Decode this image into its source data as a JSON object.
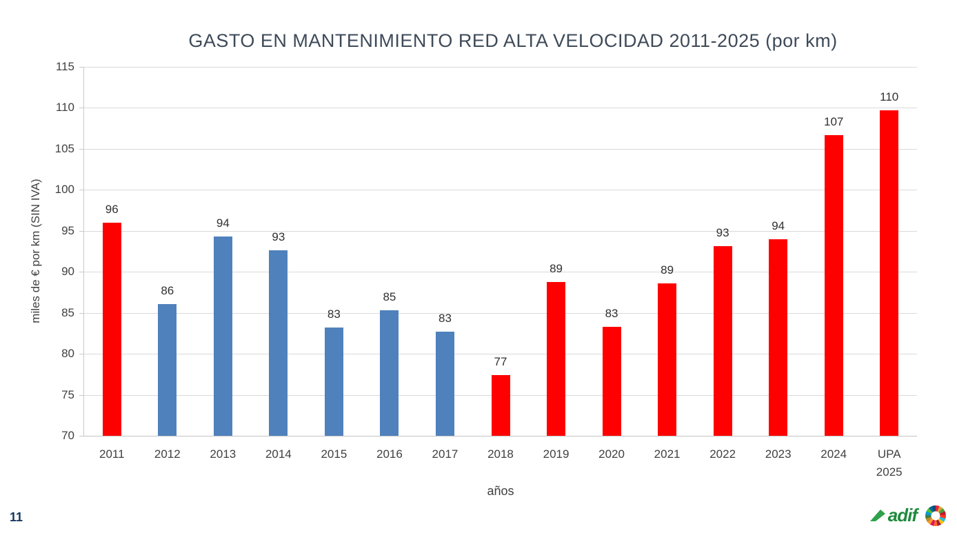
{
  "chart_data": {
    "type": "bar",
    "title": "GASTO EN MANTENIMIENTO RED ALTA VELOCIDAD 2011-2025 (por km)",
    "xlabel": "años",
    "ylabel": "miles de € por km (SIN IVA)",
    "ylim": [
      70,
      115
    ],
    "yticks": [
      70,
      75,
      80,
      85,
      90,
      95,
      100,
      105,
      110,
      115
    ],
    "grid": true,
    "legend": "none",
    "categories": [
      "2011",
      "2012",
      "2013",
      "2014",
      "2015",
      "2016",
      "2017",
      "2018",
      "2019",
      "2020",
      "2021",
      "2022",
      "2023",
      "2024",
      "UPA\n2025"
    ],
    "values": [
      96.0,
      86.1,
      94.3,
      92.6,
      83.2,
      85.3,
      82.7,
      77.4,
      88.8,
      83.3,
      88.6,
      93.1,
      94.0,
      106.7,
      109.7
    ],
    "value_labels": [
      "96",
      "86",
      "94",
      "93",
      "83",
      "85",
      "83",
      "77",
      "89",
      "83",
      "89",
      "93",
      "94",
      "107",
      "110"
    ],
    "bar_color_keys": [
      "red",
      "blue",
      "blue",
      "blue",
      "blue",
      "blue",
      "blue",
      "red",
      "red",
      "red",
      "red",
      "red",
      "red",
      "red",
      "red"
    ],
    "colors": {
      "red": "#FE0000",
      "blue": "#4F81BC"
    }
  },
  "footer": {
    "page_number": "11",
    "adif_label": "adif",
    "adif_green": "#1E8A3C",
    "adif_swoosh_green": "#2FA14C",
    "sdg_colors": [
      "#e5243b",
      "#dda63a",
      "#4c9f38",
      "#c5192d",
      "#ff3a21",
      "#26bde2",
      "#fcc30b",
      "#a21942",
      "#fd6925",
      "#dd1367",
      "#fd9d24",
      "#bf8b2e",
      "#3f7e44",
      "#0a97d9",
      "#56c02b",
      "#00689d",
      "#19486a"
    ]
  }
}
